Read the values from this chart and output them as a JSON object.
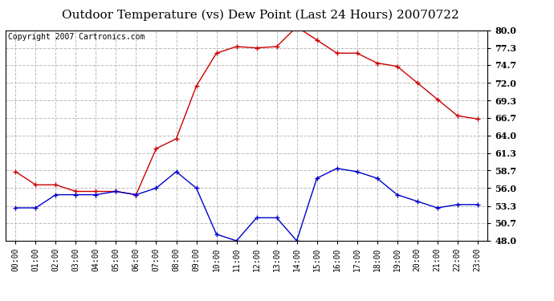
{
  "title": "Outdoor Temperature (vs) Dew Point (Last 24 Hours) 20070722",
  "copyright": "Copyright 2007 Cartronics.com",
  "hours": [
    "00:00",
    "01:00",
    "02:00",
    "03:00",
    "04:00",
    "05:00",
    "06:00",
    "07:00",
    "08:00",
    "09:00",
    "10:00",
    "11:00",
    "12:00",
    "13:00",
    "14:00",
    "15:00",
    "16:00",
    "17:00",
    "18:00",
    "19:00",
    "20:00",
    "21:00",
    "22:00",
    "23:00"
  ],
  "temp": [
    58.5,
    56.5,
    56.5,
    55.5,
    55.5,
    55.5,
    55.0,
    62.0,
    63.5,
    71.5,
    76.5,
    77.5,
    77.3,
    77.5,
    80.5,
    78.5,
    76.5,
    76.5,
    75.0,
    74.5,
    72.0,
    69.5,
    67.0,
    66.5
  ],
  "dew": [
    53.0,
    53.0,
    55.0,
    55.0,
    55.0,
    55.5,
    55.0,
    56.0,
    58.5,
    56.0,
    49.0,
    48.0,
    51.5,
    51.5,
    48.0,
    57.5,
    59.0,
    58.5,
    57.5,
    55.0,
    54.0,
    53.0,
    53.5,
    53.5
  ],
  "ylim": [
    48.0,
    80.0
  ],
  "yticks": [
    48.0,
    50.7,
    53.3,
    56.0,
    58.7,
    61.3,
    64.0,
    66.7,
    69.3,
    72.0,
    74.7,
    77.3,
    80.0
  ],
  "temp_color": "#cc0000",
  "dew_color": "#0000cc",
  "bg_color": "#ffffff",
  "grid_color": "#bbbbbb",
  "title_fontsize": 11,
  "copyright_fontsize": 7,
  "tick_fontsize": 8,
  "xtick_fontsize": 7
}
